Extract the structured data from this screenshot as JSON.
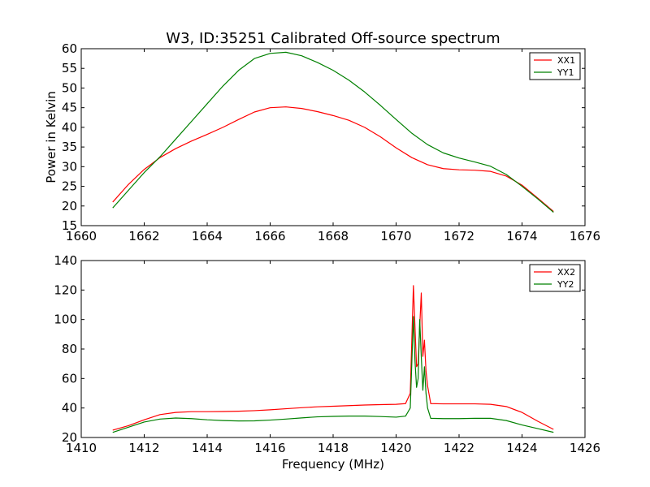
{
  "chart_data": [
    {
      "type": "line",
      "title": "W3, ID:35251 Calibrated Off-source spectrum",
      "xlabel": "",
      "ylabel": "Power in Kelvin",
      "xlim": [
        1660,
        1676
      ],
      "ylim": [
        15,
        60
      ],
      "xticks": [
        1660,
        1662,
        1664,
        1666,
        1668,
        1670,
        1672,
        1674,
        1676
      ],
      "yticks": [
        15,
        20,
        25,
        30,
        35,
        40,
        45,
        50,
        55,
        60
      ],
      "legend": "top-right",
      "grid": false,
      "series": [
        {
          "name": "XX1",
          "color": "#ff0000",
          "x": [
            1661.0,
            1661.5,
            1662.0,
            1662.5,
            1663.0,
            1663.5,
            1664.0,
            1664.5,
            1665.0,
            1665.5,
            1666.0,
            1666.5,
            1667.0,
            1667.5,
            1668.0,
            1668.5,
            1669.0,
            1669.5,
            1670.0,
            1670.5,
            1671.0,
            1671.5,
            1672.0,
            1672.5,
            1673.0,
            1673.5,
            1674.0,
            1674.5,
            1675.0
          ],
          "y": [
            21.0,
            25.5,
            29.3,
            32.3,
            34.6,
            36.5,
            38.2,
            40.0,
            42.0,
            43.9,
            45.0,
            45.2,
            44.8,
            44.0,
            43.0,
            41.8,
            40.0,
            37.6,
            34.8,
            32.3,
            30.5,
            29.5,
            29.2,
            29.1,
            28.8,
            27.6,
            25.3,
            22.0,
            18.6
          ]
        },
        {
          "name": "YY1",
          "color": "#008000",
          "x": [
            1661.0,
            1661.5,
            1662.0,
            1662.5,
            1663.0,
            1663.5,
            1664.0,
            1664.5,
            1665.0,
            1665.5,
            1666.0,
            1666.5,
            1667.0,
            1667.5,
            1668.0,
            1668.5,
            1669.0,
            1669.5,
            1670.0,
            1670.5,
            1671.0,
            1671.5,
            1672.0,
            1672.5,
            1673.0,
            1673.5,
            1674.0,
            1674.5,
            1675.0
          ],
          "y": [
            19.5,
            24.0,
            28.5,
            32.5,
            37.0,
            41.5,
            46.0,
            50.5,
            54.5,
            57.5,
            58.8,
            59.1,
            58.2,
            56.5,
            54.5,
            52.0,
            49.0,
            45.6,
            42.0,
            38.5,
            35.6,
            33.5,
            32.2,
            31.2,
            30.1,
            28.0,
            25.0,
            21.8,
            18.4
          ]
        }
      ]
    },
    {
      "type": "line",
      "title": "",
      "xlabel": "Frequency (MHz)",
      "ylabel": "",
      "xlim": [
        1410,
        1426
      ],
      "ylim": [
        20,
        140
      ],
      "xticks": [
        1410,
        1412,
        1414,
        1416,
        1418,
        1420,
        1422,
        1424,
        1426
      ],
      "yticks": [
        20,
        40,
        60,
        80,
        100,
        120,
        140
      ],
      "legend": "top-right",
      "grid": false,
      "series": [
        {
          "name": "XX2",
          "color": "#ff0000",
          "x": [
            1411.0,
            1411.5,
            1412.0,
            1412.5,
            1413.0,
            1413.5,
            1414.0,
            1414.5,
            1415.0,
            1415.5,
            1416.0,
            1416.5,
            1417.0,
            1417.5,
            1418.0,
            1418.5,
            1419.0,
            1419.5,
            1420.0,
            1420.3,
            1420.45,
            1420.55,
            1420.6,
            1420.65,
            1420.7,
            1420.75,
            1420.8,
            1420.85,
            1420.9,
            1420.95,
            1421.0,
            1421.1,
            1421.5,
            1422.0,
            1422.5,
            1423.0,
            1423.5,
            1424.0,
            1424.5,
            1425.0
          ],
          "y": [
            25.0,
            28.0,
            32.0,
            35.5,
            37.0,
            37.5,
            37.5,
            37.6,
            37.8,
            38.2,
            38.8,
            39.5,
            40.2,
            40.8,
            41.2,
            41.6,
            42.0,
            42.3,
            42.5,
            43.0,
            50.0,
            123.0,
            95.0,
            68.0,
            70.0,
            95.0,
            118.0,
            75.0,
            86.0,
            65.0,
            55.0,
            43.0,
            42.8,
            42.8,
            42.8,
            42.5,
            41.0,
            37.0,
            31.0,
            25.5
          ]
        },
        {
          "name": "YY2",
          "color": "#008000",
          "x": [
            1411.0,
            1411.5,
            1412.0,
            1412.5,
            1413.0,
            1413.5,
            1414.0,
            1414.5,
            1415.0,
            1415.5,
            1416.0,
            1416.5,
            1417.0,
            1417.5,
            1418.0,
            1418.5,
            1419.0,
            1419.5,
            1420.0,
            1420.3,
            1420.45,
            1420.55,
            1420.6,
            1420.65,
            1420.7,
            1420.75,
            1420.8,
            1420.85,
            1420.9,
            1420.95,
            1421.0,
            1421.1,
            1421.5,
            1422.0,
            1422.5,
            1423.0,
            1423.5,
            1424.0,
            1424.5,
            1425.0
          ],
          "y": [
            23.5,
            27.0,
            30.5,
            32.5,
            33.2,
            32.8,
            32.0,
            31.5,
            31.2,
            31.3,
            31.8,
            32.5,
            33.3,
            34.0,
            34.3,
            34.5,
            34.5,
            34.2,
            33.8,
            34.5,
            40.0,
            102.0,
            72.0,
            54.0,
            60.0,
            100.0,
            75.0,
            52.0,
            68.0,
            50.0,
            40.0,
            33.0,
            32.8,
            32.8,
            33.0,
            33.0,
            31.5,
            28.5,
            26.0,
            23.5
          ]
        }
      ]
    }
  ]
}
